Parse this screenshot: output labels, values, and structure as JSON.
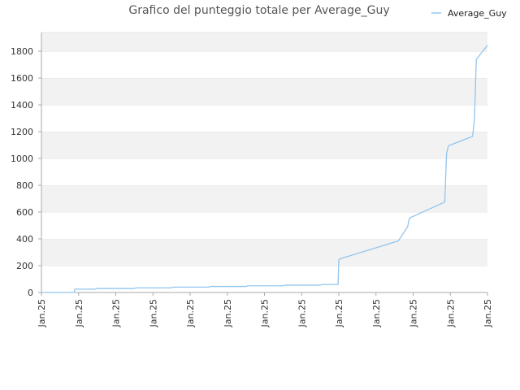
{
  "chart_data": {
    "type": "line",
    "title": "Grafico del punteggio totale per Average_Guy",
    "xlabel": "",
    "ylabel": "",
    "ylim": [
      0,
      1940
    ],
    "y_ticks": [
      0,
      200,
      400,
      600,
      800,
      1000,
      1200,
      1400,
      1600,
      1800
    ],
    "x_tick_labels": [
      "Jan.25",
      "Jan.25",
      "Jan.25",
      "Jan.25",
      "Jan.25",
      "Jan.25",
      "Jan.25",
      "Jan.25",
      "Jan.25",
      "Jan.25",
      "Jan.25",
      "Jan.25",
      "Jan.25"
    ],
    "grid": "horizontal alternating bands",
    "legend_position": "top-right",
    "series": [
      {
        "name": "Average_Guy",
        "color": "#92c5ee",
        "x": [
          0.0,
          0.885,
          0.9,
          1.0,
          1.45,
          1.5,
          2.5,
          2.55,
          3.5,
          3.55,
          4.5,
          4.55,
          5.5,
          5.55,
          6.5,
          6.55,
          7.5,
          7.55,
          7.98,
          8.0,
          8.02,
          9.6,
          9.85,
          9.9,
          10.85,
          10.9,
          10.95,
          11.6,
          11.65,
          11.7,
          12.0
        ],
        "values": [
          0,
          0,
          25,
          25,
          25,
          30,
          30,
          35,
          35,
          40,
          40,
          45,
          45,
          50,
          50,
          55,
          55,
          60,
          60,
          240,
          250,
          385,
          490,
          555,
          675,
          1040,
          1095,
          1165,
          1300,
          1740,
          1845
        ]
      }
    ]
  }
}
